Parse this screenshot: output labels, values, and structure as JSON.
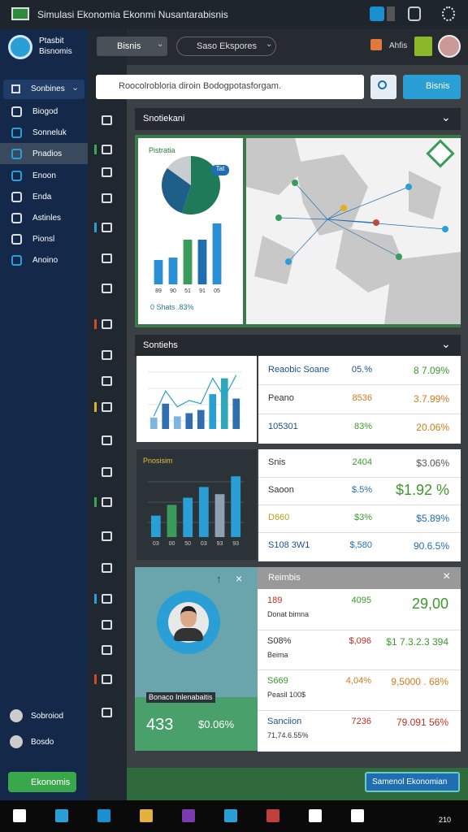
{
  "window": {
    "title": "Simulasi Ekonomia Ekonmi Nusantarabisnis",
    "clock": "210"
  },
  "sidebar": {
    "brand": [
      "Ptasbit",
      "Bisnomis"
    ],
    "header": "Sonbines",
    "items": [
      "Biogod",
      "Sonneluk",
      "Pnadios",
      "Enoon",
      "Enda",
      "Astinles",
      "Pionsl",
      "Anoino"
    ],
    "selected": 2,
    "footer": [
      "Sobroiod",
      "Bosdo"
    ],
    "button": "Ekonomis"
  },
  "toolbar": {
    "dropdowns": [
      "Bisnis",
      "Saso Ekspores"
    ],
    "action": "Ahfis"
  },
  "search": {
    "placeholder": "Roocolrobloria diroin Bodogpotasforgam.",
    "button": "Bisnis"
  },
  "panel1": {
    "title": "Snotiekani",
    "card_title": "Pistratia",
    "badge": "Tat",
    "caption": "0 Shats .83%",
    "pie": {
      "values": [
        55,
        30,
        15
      ],
      "colors": [
        "#1f7a5a",
        "#1e5f8a",
        "#c8cdd2"
      ]
    },
    "bars": {
      "values": [
        30,
        33,
        55,
        55,
        75
      ],
      "colors": [
        "#2a8fd4",
        "#2a8fd4",
        "#3a9c5a",
        "#1e6fb0",
        "#2a8fd4"
      ],
      "ylim": [
        0,
        80
      ],
      "labels": [
        "89",
        "90",
        "51",
        "91",
        "05"
      ]
    }
  },
  "panel2": {
    "title": "Sontiehs",
    "bars": {
      "values": [
        18,
        40,
        20,
        25,
        30,
        55,
        80,
        48
      ],
      "colors": [
        "#7fb3e0",
        "#2f6fb0",
        "#7fb3e0",
        "#2f6fb0",
        "#2f6fb0",
        "#2a9fd6",
        "#2fa7b8",
        "#2f6fb0"
      ],
      "ylim": [
        0,
        100
      ]
    },
    "line": {
      "values": [
        20,
        60,
        35,
        45,
        40,
        80,
        50,
        85
      ],
      "ylim": [
        0,
        100
      ]
    },
    "rows": [
      {
        "cells": [
          {
            "text": "Reaobic Soane",
            "color": "#1f4f8a"
          },
          {
            "text": "05.%",
            "color": "#1f4f8a"
          },
          {
            "text": "8 7.09%",
            "color": "#3a9a2a"
          }
        ]
      },
      {
        "cells": [
          {
            "text": "Peano",
            "color": "#333333"
          },
          {
            "text": "8536",
            "color": "#d07a1a"
          },
          {
            "text": "3.7.99%",
            "color": "#d07a1a"
          }
        ]
      },
      {
        "cells": [
          {
            "text": "105301",
            "color": "#1f4f8a"
          },
          {
            "text": "83%",
            "color": "#3a9a2a"
          },
          {
            "text": "20.06%",
            "color": "#d07a1a"
          }
        ]
      }
    ]
  },
  "panel3": {
    "title": "Pnosisim",
    "bars": {
      "values": [
        30,
        45,
        55,
        70,
        60,
        85
      ],
      "colors": [
        "#2a9fd6",
        "#3a9c5a",
        "#2a9fd6",
        "#2a9fd6",
        "#8fa0b0",
        "#2a9fd6"
      ],
      "ylim": [
        0,
        100
      ],
      "labels": [
        "03",
        "00",
        "50",
        "03",
        "93",
        "93"
      ]
    },
    "rows": [
      {
        "cells": [
          {
            "text": "Snis",
            "color": "#333333"
          },
          {
            "text": "2404",
            "color": "#3a9a2a"
          },
          {
            "text": "$3.06%",
            "color": "#555555"
          }
        ]
      },
      {
        "cells": [
          {
            "text": "Saoon",
            "color": "#333333"
          },
          {
            "text": "$.5%",
            "color": "#1f6fb0"
          },
          {
            "text": "$1.92 %",
            "color": "#3a9a2a"
          }
        ]
      },
      {
        "cells": [
          {
            "text": "D660",
            "color": "#b8a020"
          },
          {
            "text": "$3%",
            "color": "#3a9a2a"
          },
          {
            "text": "$5.89%",
            "color": "#1f6fb0"
          }
        ]
      },
      {
        "cells": [
          {
            "text": "S108 3W1",
            "color": "#1f4f8a"
          },
          {
            "text": "$,580",
            "color": "#1f6fb0"
          },
          {
            "text": "90.6.5%",
            "color": "#1f6fb0"
          }
        ]
      }
    ]
  },
  "panel4": {
    "title": "Reimbis",
    "card_caption": "Bonaco Inlenabaitis",
    "card_value": "433",
    "card_pct": "$0.06%",
    "rows": [
      {
        "cells": [
          {
            "text": "189",
            "color": "#c03020"
          },
          {
            "text": "4095",
            "color": "#3a9a2a"
          },
          {
            "text": "29,00",
            "color": "#3a9a2a"
          }
        ],
        "sub": "Donat bimna"
      },
      {
        "cells": [
          {
            "text": "S08%",
            "color": "#333333"
          },
          {
            "text": "$,096",
            "color": "#c03020"
          },
          {
            "text": "$1 7.3.2.3 394",
            "color": "#3a9a2a"
          }
        ],
        "sub": "Beima"
      },
      {
        "cells": [
          {
            "text": "S669",
            "color": "#3a9a2a"
          },
          {
            "text": "4,04%",
            "color": "#d07a1a"
          },
          {
            "text": "9,5000 . 68%",
            "color": "#d07a1a"
          }
        ],
        "sub": "Peasil 100$"
      },
      {
        "cells": [
          {
            "text": "Sanciion",
            "color": "#1f4f8a"
          },
          {
            "text": "7236",
            "color": "#c03020"
          },
          {
            "text": "79.091 56%",
            "color": "#c03020"
          }
        ],
        "sub": "71,74.6.55%"
      }
    ]
  },
  "footer": {
    "button": "Samenol Ekonomian"
  }
}
